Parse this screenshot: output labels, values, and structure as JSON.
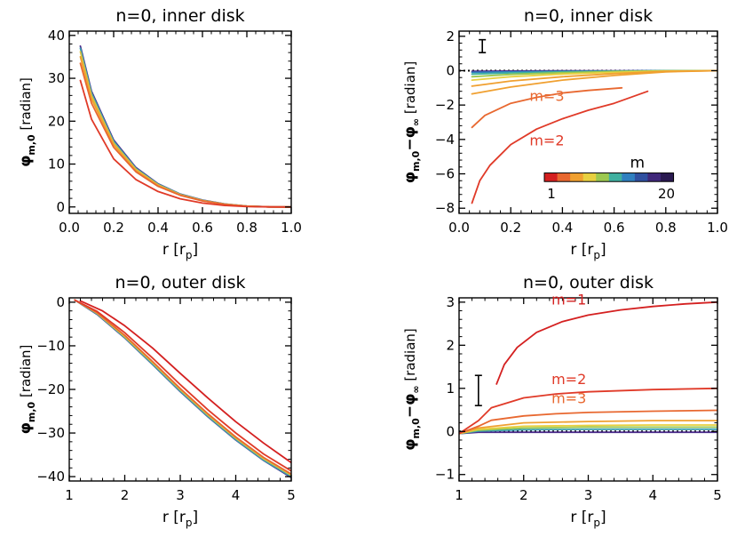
{
  "chart_data": [
    {
      "id": "tl",
      "type": "line",
      "title": "n=0, inner disk",
      "xlabel": "r [r",
      "xlabel_sub": "p",
      "xlabel_end": "]",
      "ylabel": "φ",
      "ylabel_sub": "m,0",
      "ylabel_unit": "[radian]",
      "xlim": [
        0.0,
        1.0
      ],
      "ylim": [
        -1.5,
        41
      ],
      "xticks": [
        0.0,
        0.2,
        0.4,
        0.6,
        0.8,
        1.0
      ],
      "xticklabels": [
        "0.0",
        "0.2",
        "0.4",
        "0.6",
        "0.8",
        "1.0"
      ],
      "yticks": [
        0,
        10,
        20,
        30,
        40
      ],
      "yticklabels": [
        "0",
        "10",
        "20",
        "30",
        "40"
      ],
      "series": [
        {
          "m": 20,
          "color": "#4b2d8c",
          "x": [
            0.05,
            0.1,
            0.2,
            0.3,
            0.4,
            0.5,
            0.6,
            0.7,
            0.8,
            0.9,
            1.0
          ],
          "y": [
            37.5,
            27.0,
            15.6,
            9.2,
            5.4,
            3.0,
            1.6,
            0.7,
            0.2,
            0.02,
            0
          ]
        },
        {
          "m": 10,
          "color": "#3aa0b0",
          "x": [
            0.05,
            0.1,
            0.2,
            0.3,
            0.4,
            0.5,
            0.6,
            0.7,
            0.8,
            0.9,
            1.0
          ],
          "y": [
            37.0,
            26.6,
            15.3,
            9.0,
            5.3,
            2.95,
            1.55,
            0.68,
            0.2,
            0.02,
            0
          ]
        },
        {
          "m": 5,
          "color": "#d8c040",
          "x": [
            0.05,
            0.1,
            0.2,
            0.3,
            0.4,
            0.5,
            0.6,
            0.7,
            0.8,
            0.9,
            1.0
          ],
          "y": [
            36.2,
            26.0,
            14.9,
            8.8,
            5.15,
            2.85,
            1.5,
            0.65,
            0.18,
            0.02,
            0
          ]
        },
        {
          "m": 4,
          "color": "#f0a030",
          "x": [
            0.05,
            0.1,
            0.2,
            0.3,
            0.4,
            0.5,
            0.6,
            0.7,
            0.8,
            0.9,
            1.0
          ],
          "y": [
            35.0,
            25.2,
            14.5,
            8.5,
            5.0,
            2.8,
            1.45,
            0.62,
            0.17,
            0.02,
            0
          ]
        },
        {
          "m": 3,
          "color": "#e86830",
          "x": [
            0.05,
            0.1,
            0.2,
            0.3,
            0.4,
            0.5,
            0.6,
            0.7,
            0.8,
            0.9,
            1.0
          ],
          "y": [
            33.5,
            24.2,
            13.9,
            8.2,
            4.8,
            2.7,
            1.4,
            0.6,
            0.16,
            0.02,
            0
          ]
        },
        {
          "m": 2,
          "color": "#e03a28",
          "x": [
            0.05,
            0.1,
            0.2,
            0.3,
            0.4,
            0.5,
            0.6,
            0.7,
            0.8,
            0.9,
            1.0
          ],
          "y": [
            29.5,
            20.5,
            11.2,
            6.4,
            3.6,
            1.9,
            0.9,
            0.35,
            0.08,
            0.01,
            0
          ]
        }
      ]
    },
    {
      "id": "tr",
      "type": "line",
      "title": "n=0, inner disk",
      "xlabel": "r [r",
      "xlabel_sub": "p",
      "xlabel_end": "]",
      "ylabel": "φ",
      "ylabel_sub": "m,0",
      "ylabel_mid": "−φ",
      "ylabel_sub2": "∞",
      "ylabel_unit": "[radian]",
      "xlim": [
        0.0,
        1.0
      ],
      "ylim": [
        -8.3,
        2.3
      ],
      "xticks": [
        0.0,
        0.2,
        0.4,
        0.6,
        0.8,
        1.0
      ],
      "xticklabels": [
        "0.0",
        "0.2",
        "0.4",
        "0.6",
        "0.8",
        "1.0"
      ],
      "yticks": [
        -8,
        -6,
        -4,
        -2,
        0,
        2
      ],
      "yticklabels": [
        "−8",
        "−6",
        "−4",
        "−2",
        "0",
        "2"
      ],
      "errorbar": {
        "x": 0.09,
        "ylow": 1.05,
        "yhigh": 1.8
      },
      "annotations": [
        {
          "text": "m=3",
          "x": 0.34,
          "y": -1.75,
          "color": "#e86830"
        },
        {
          "text": "m=2",
          "x": 0.34,
          "y": -4.35,
          "color": "#e03a28"
        }
      ],
      "colorbar": {
        "title": "m",
        "min_label": "1",
        "max_label": "20",
        "x0": 0.33,
        "x1": 0.83,
        "y0": -5.95,
        "y1": -6.45,
        "colors": [
          "#d42020",
          "#e86830",
          "#f0a030",
          "#e8d040",
          "#9cc850",
          "#40b0a0",
          "#3080c0",
          "#3050a0",
          "#40287a",
          "#2a1a50"
        ]
      },
      "reference_line": {
        "style": "dotted",
        "y": 0
      },
      "series": [
        {
          "m": 20,
          "color": "#4b2d8c",
          "x": [
            0.05,
            0.2,
            0.4,
            0.6,
            0.8,
            1.0
          ],
          "y": [
            -0.03,
            -0.02,
            -0.01,
            -0.01,
            0,
            0
          ]
        },
        {
          "m": 12,
          "color": "#3080c0",
          "x": [
            0.05,
            0.2,
            0.4,
            0.6,
            0.8,
            1.0
          ],
          "y": [
            -0.1,
            -0.07,
            -0.04,
            -0.02,
            0,
            0
          ]
        },
        {
          "m": 8,
          "color": "#40b0a0",
          "x": [
            0.05,
            0.2,
            0.4,
            0.6,
            0.8,
            1.0
          ],
          "y": [
            -0.2,
            -0.13,
            -0.07,
            -0.03,
            0,
            0
          ]
        },
        {
          "m": 6,
          "color": "#9cc850",
          "x": [
            0.05,
            0.2,
            0.4,
            0.6,
            0.8,
            1.0
          ],
          "y": [
            -0.35,
            -0.22,
            -0.12,
            -0.05,
            -0.01,
            0
          ]
        },
        {
          "m": 5,
          "color": "#e8d040",
          "x": [
            0.05,
            0.2,
            0.4,
            0.6,
            0.8,
            1.0
          ],
          "y": [
            -0.55,
            -0.35,
            -0.2,
            -0.1,
            -0.02,
            0
          ]
        },
        {
          "m": 4,
          "color": "#f0a030",
          "x": [
            0.05,
            0.2,
            0.4,
            0.6,
            0.8,
            1.0
          ],
          "y": [
            -0.9,
            -0.6,
            -0.35,
            -0.17,
            -0.04,
            0
          ]
        },
        {
          "m": 4,
          "color": "#f0a030",
          "x": [
            0.05,
            0.2,
            0.4,
            0.6,
            0.8,
            1.0
          ],
          "y": [
            -1.35,
            -0.95,
            -0.55,
            -0.28,
            -0.07,
            0
          ]
        },
        {
          "m": 3,
          "color": "#e86830",
          "x": [
            0.05,
            0.1,
            0.2,
            0.3,
            0.4,
            0.5,
            0.63
          ],
          "y": [
            -3.3,
            -2.6,
            -1.9,
            -1.55,
            -1.3,
            -1.15,
            -1.0
          ]
        },
        {
          "m": 2,
          "color": "#e03a28",
          "x": [
            0.05,
            0.08,
            0.12,
            0.2,
            0.3,
            0.4,
            0.5,
            0.6,
            0.73
          ],
          "y": [
            -7.7,
            -6.4,
            -5.5,
            -4.3,
            -3.4,
            -2.8,
            -2.3,
            -1.9,
            -1.2
          ]
        }
      ]
    },
    {
      "id": "bl",
      "type": "line",
      "title": "n=0, outer disk",
      "xlabel": "r [r",
      "xlabel_sub": "p",
      "xlabel_end": "]",
      "ylabel": "φ",
      "ylabel_sub": "m,0",
      "ylabel_unit": "[radian]",
      "xlim": [
        1,
        5
      ],
      "ylim": [
        -41,
        1
      ],
      "xticks": [
        1,
        2,
        3,
        4,
        5
      ],
      "xticklabels": [
        "1",
        "2",
        "3",
        "4",
        "5"
      ],
      "yticks": [
        0,
        -10,
        -20,
        -30,
        -40
      ],
      "yticklabels": [
        "0",
        "−10",
        "−20",
        "−30",
        "−40"
      ],
      "series": [
        {
          "m": 20,
          "color": "#4b2d8c",
          "x": [
            1.1,
            1.5,
            2.0,
            2.5,
            3.0,
            3.5,
            4.0,
            4.5,
            5.0
          ],
          "y": [
            0.5,
            -2.8,
            -8.2,
            -14.3,
            -20.5,
            -26.3,
            -31.6,
            -36.3,
            -40.2
          ]
        },
        {
          "m": 10,
          "color": "#3aa0b0",
          "x": [
            1.1,
            1.5,
            2.0,
            2.5,
            3.0,
            3.5,
            4.0,
            4.5,
            5.0
          ],
          "y": [
            0.5,
            -2.7,
            -8.1,
            -14.2,
            -20.4,
            -26.2,
            -31.5,
            -36.2,
            -40.0
          ]
        },
        {
          "m": 5,
          "color": "#d8c040",
          "x": [
            1.1,
            1.5,
            2.0,
            2.5,
            3.0,
            3.5,
            4.0,
            4.5,
            5.0
          ],
          "y": [
            0.5,
            -2.55,
            -7.9,
            -13.9,
            -20.1,
            -25.9,
            -31.2,
            -35.9,
            -39.7
          ]
        },
        {
          "m": 3,
          "color": "#e86830",
          "x": [
            1.1,
            1.5,
            2.0,
            2.5,
            3.0,
            3.5,
            4.0,
            4.5,
            5.0
          ],
          "y": [
            0.5,
            -2.4,
            -7.6,
            -13.6,
            -19.8,
            -25.6,
            -30.9,
            -35.6,
            -39.4
          ]
        },
        {
          "m": 2,
          "color": "#e03a28",
          "x": [
            1.1,
            1.5,
            2.0,
            2.5,
            3.0,
            3.5,
            4.0,
            4.5,
            5.0
          ],
          "y": [
            0.5,
            -2.1,
            -7.0,
            -12.8,
            -18.9,
            -24.7,
            -30.0,
            -34.8,
            -38.7
          ]
        },
        {
          "m": 1,
          "color": "#d42020",
          "x": [
            1.2,
            1.6,
            2.0,
            2.5,
            3.0,
            3.5,
            4.0,
            4.5,
            5.0
          ],
          "y": [
            0.3,
            -2.0,
            -5.4,
            -10.5,
            -16.3,
            -22.0,
            -27.4,
            -32.3,
            -36.8
          ]
        }
      ]
    },
    {
      "id": "br",
      "type": "line",
      "title": "n=0, outer disk",
      "xlabel": "r [r",
      "xlabel_sub": "p",
      "xlabel_end": "]",
      "ylabel": "φ",
      "ylabel_sub": "m,0",
      "ylabel_mid": "−φ",
      "ylabel_sub2": "∞",
      "ylabel_unit": "[radian]",
      "xlim": [
        1,
        5
      ],
      "ylim": [
        -1.15,
        3.1
      ],
      "xticks": [
        1,
        2,
        3,
        4,
        5
      ],
      "xticklabels": [
        "1",
        "2",
        "3",
        "4",
        "5"
      ],
      "yticks": [
        -1,
        0,
        1,
        2,
        3
      ],
      "yticklabels": [
        "−1",
        "0",
        "1",
        "2",
        "3"
      ],
      "errorbar": {
        "x": 1.3,
        "ylow": 0.6,
        "yhigh": 1.3
      },
      "annotations": [
        {
          "text": "m=1",
          "x": 2.7,
          "y": 2.95,
          "color": "#d42020"
        },
        {
          "text": "m=2",
          "x": 2.7,
          "y": 1.1,
          "color": "#e03a28"
        },
        {
          "text": "m=3",
          "x": 2.7,
          "y": 0.66,
          "color": "#e86830"
        }
      ],
      "reference_line": {
        "style": "dotted",
        "y": 0
      },
      "series": [
        {
          "m": 20,
          "color": "#4b2d8c",
          "x": [
            1.0,
            1.3,
            2.0,
            3.0,
            4.0,
            5.0
          ],
          "y": [
            -0.05,
            -0.02,
            -0.02,
            -0.02,
            -0.02,
            -0.02
          ]
        },
        {
          "m": 10,
          "color": "#3aa0b0",
          "x": [
            1.0,
            1.3,
            2.0,
            3.0,
            4.0,
            5.0
          ],
          "y": [
            -0.05,
            0.01,
            0.04,
            0.05,
            0.05,
            0.05
          ]
        },
        {
          "m": 6,
          "color": "#9cc850",
          "x": [
            1.0,
            1.3,
            2.0,
            3.0,
            4.0,
            5.0
          ],
          "y": [
            -0.05,
            0.03,
            0.08,
            0.1,
            0.1,
            0.1
          ]
        },
        {
          "m": 5,
          "color": "#e8d040",
          "x": [
            1.0,
            1.3,
            2.0,
            3.0,
            4.0,
            5.0
          ],
          "y": [
            -0.05,
            0.05,
            0.12,
            0.14,
            0.15,
            0.15
          ]
        },
        {
          "m": 4,
          "color": "#f0a030",
          "x": [
            1.0,
            1.3,
            2.0,
            3.0,
            4.0,
            5.0
          ],
          "y": [
            -0.05,
            0.08,
            0.2,
            0.23,
            0.25,
            0.25
          ]
        },
        {
          "m": 3,
          "color": "#e86830",
          "x": [
            1.0,
            1.3,
            1.5,
            2.0,
            2.5,
            3.0,
            4.0,
            5.0
          ],
          "y": [
            -0.05,
            0.12,
            0.26,
            0.36,
            0.41,
            0.44,
            0.47,
            0.49
          ]
        },
        {
          "m": 2,
          "color": "#e03a28",
          "x": [
            1.0,
            1.3,
            1.5,
            2.0,
            2.5,
            3.0,
            4.0,
            5.0
          ],
          "y": [
            -0.05,
            0.25,
            0.55,
            0.78,
            0.87,
            0.92,
            0.97,
            1.0
          ]
        },
        {
          "m": 1,
          "color": "#d42020",
          "x": [
            1.58,
            1.7,
            1.9,
            2.2,
            2.6,
            3.0,
            3.5,
            4.0,
            4.5,
            5.0
          ],
          "y": [
            1.1,
            1.55,
            1.95,
            2.3,
            2.55,
            2.7,
            2.82,
            2.9,
            2.96,
            3.0
          ]
        }
      ]
    }
  ]
}
